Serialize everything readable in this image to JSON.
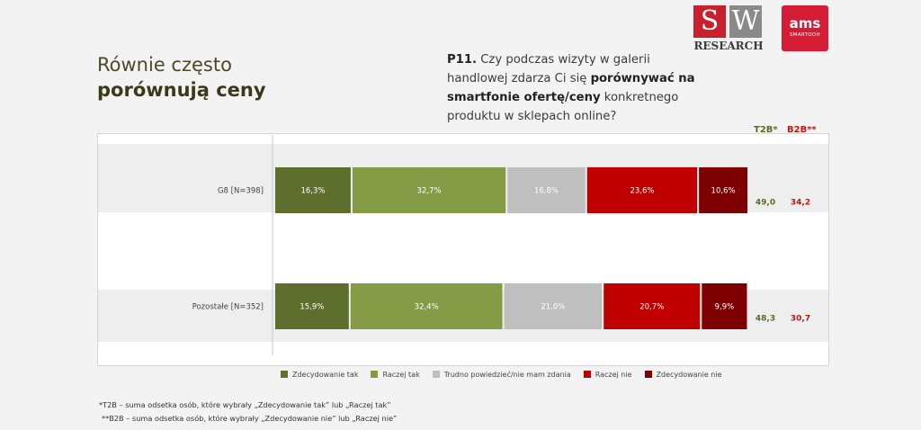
{
  "headline": {
    "line1": "Równie często",
    "line2": "porównują ceny"
  },
  "question": {
    "code": "P11.",
    "part1": " Czy podczas wizyty w galerii handlowej zdarza Ci się ",
    "bold": "porównywać na smartfonie ofertę/ceny",
    "part2": " konkretnego produktu w sklepach online?"
  },
  "logos": {
    "sw_s": "S",
    "sw_w": "W",
    "sw_research": "RESEARCH",
    "ams": "ams",
    "ams_sub": "SMARTOOH"
  },
  "summary_headers": {
    "t2b": "T2B*",
    "b2b": "B2B**"
  },
  "colors": {
    "Zdecydowanie tak": "#5e6e2c",
    "Raczej tak": "#869b45",
    "Trudno powiedzieć/nie mam zdania": "#bfbfbf",
    "Raczej nie": "#c00000",
    "Zdecydowanie nie": "#7f0000",
    "t2b_text": "#5a6b2a",
    "b2b_text": "#b81a1a"
  },
  "chart_data": {
    "type": "bar",
    "orientation": "horizontal",
    "stacked": true,
    "unit": "%",
    "categories": [
      "G8 [N=398]",
      "Pozostałe [N=352]"
    ],
    "series": [
      {
        "name": "Zdecydowanie tak",
        "values": [
          16.3,
          15.9
        ],
        "labels": [
          "16,3%",
          "15,9%"
        ]
      },
      {
        "name": "Raczej tak",
        "values": [
          32.7,
          32.4
        ],
        "labels": [
          "32,7%",
          "32,4%"
        ]
      },
      {
        "name": "Trudno powiedzieć/nie mam zdania",
        "values": [
          16.8,
          21.0
        ],
        "labels": [
          "16,8%",
          "21,0%"
        ]
      },
      {
        "name": "Raczej nie",
        "values": [
          23.6,
          20.7
        ],
        "labels": [
          "23,6%",
          "20,7%"
        ]
      },
      {
        "name": "Zdecydowanie nie",
        "values": [
          10.6,
          9.9
        ],
        "labels": [
          "10,6%",
          "9,9%"
        ]
      }
    ],
    "t2b": {
      "values": [
        49.0,
        48.3
      ],
      "labels": [
        "49,0",
        "48,3"
      ]
    },
    "b2b": {
      "values": [
        34.2,
        30.7
      ],
      "labels": [
        "34,2",
        "30,7"
      ]
    },
    "legend_position": "bottom"
  },
  "footnotes": [
    "*T2B – suma odsetka osób, które wybrały „Zdecydowanie tak” lub „Raczej tak”",
    "**B2B – suma odsetka osób, które wybrały „Zdecydowanie nie” lub „Raczej nie”"
  ]
}
